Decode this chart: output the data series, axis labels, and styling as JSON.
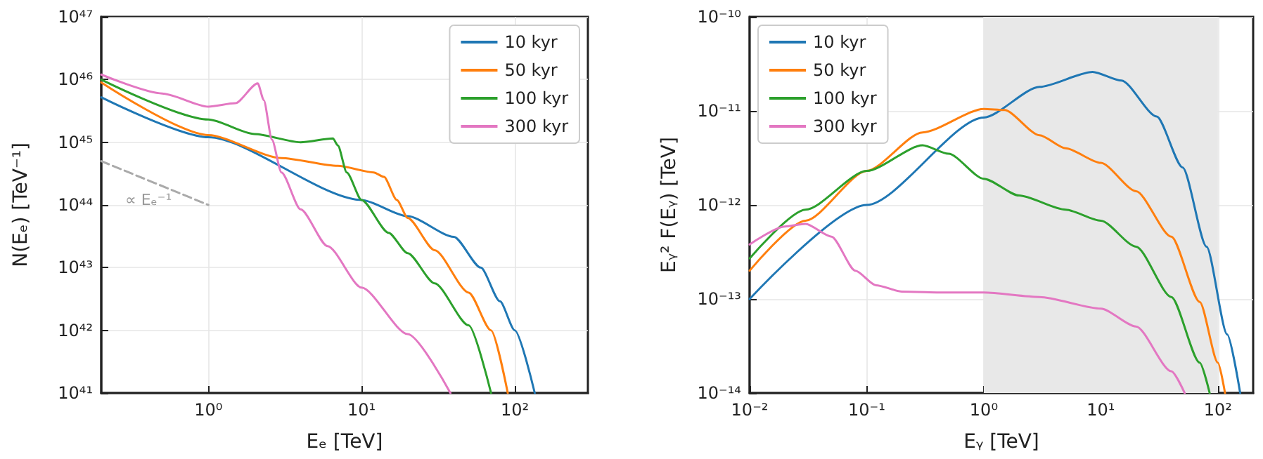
{
  "chart_data": [
    {
      "type": "line",
      "xlabel": "Eₑ [TeV]",
      "ylabel": "N(Eₑ) [TeV⁻¹]",
      "log": "xy",
      "grid": true,
      "legend": "top right",
      "xlim": [
        0.2,
        300
      ],
      "ylim": [
        1e+41,
        1e+47
      ],
      "xticks": [
        {
          "value": 1,
          "label": "10⁰"
        },
        {
          "value": 10,
          "label": "10¹"
        },
        {
          "value": 100,
          "label": "10²"
        }
      ],
      "yticks": [
        {
          "value": 1e+41,
          "label": "10⁴¹"
        },
        {
          "value": 1e+42,
          "label": "10⁴²"
        },
        {
          "value": 1e+43,
          "label": "10⁴³"
        },
        {
          "value": 1e+44,
          "label": "10⁴⁴"
        },
        {
          "value": 1e+45,
          "label": "10⁴⁵"
        },
        {
          "value": 1e+46,
          "label": "10⁴⁶"
        },
        {
          "value": 1e+47,
          "label": "10⁴⁷"
        }
      ],
      "annotations": [
        "∝ Eₑ⁻¹"
      ],
      "series": [
        {
          "name": "10 kyr",
          "color": "#1f77b4",
          "x": [
            0.2,
            1,
            10,
            20,
            40,
            60,
            80,
            100,
            135
          ],
          "values": [
            5.2e+45,
            1.2e+45,
            1.2e+44,
            6.6e+43,
            3.1e+43,
            1e+43,
            2.9e+42,
            1e+42,
            1e+41
          ]
        },
        {
          "name": "50 kyr",
          "color": "#ff7f0e",
          "x": [
            0.2,
            1,
            3,
            7,
            12,
            14,
            17,
            20,
            30,
            50,
            70,
            90
          ],
          "values": [
            9e+45,
            1.3e+45,
            5.6e+44,
            4.2e+44,
            3.3e+44,
            2.8e+44,
            1.2e+44,
            6.2e+43,
            1.9e+43,
            4e+42,
            1e+42,
            1e+41
          ]
        },
        {
          "name": "100 kyr",
          "color": "#2ca02c",
          "x": [
            0.2,
            1,
            2,
            4,
            6.5,
            7,
            8,
            10,
            15,
            20,
            30,
            50,
            70
          ],
          "values": [
            1e+46,
            2.3e+45,
            1.35e+45,
            1e+45,
            1.15e+45,
            8.9e+44,
            3.3e+44,
            1.2e+44,
            3.6e+43,
            1.7e+43,
            5.6e+42,
            1.2e+42,
            1e+41
          ]
        },
        {
          "name": "300 kyr",
          "color": "#e377c2",
          "x": [
            0.2,
            0.5,
            1,
            1.5,
            2.1,
            2.3,
            2.6,
            3,
            4,
            6,
            10,
            20,
            38
          ],
          "values": [
            1.2e+46,
            6e+45,
            3.7e+45,
            4.2e+45,
            8.7e+45,
            4.7e+45,
            1.1e+45,
            3.3e+44,
            8.5e+43,
            2.2e+43,
            4.8e+42,
            8.7e+41,
            1e+41
          ]
        },
        {
          "type": "line",
          "color": "#aaaaaa",
          "line_style": "dashed",
          "x": [
            0.2,
            1
          ],
          "values": [
            5e+44,
            1e+44
          ]
        }
      ]
    },
    {
      "type": "line",
      "xlabel": "Eᵧ [TeV]",
      "ylabel": "Eᵧ² F(Eᵧ) [TeV]",
      "log": "xy",
      "grid": true,
      "legend": "top left",
      "xlim": [
        0.01,
        200
      ],
      "ylim": [
        1e-14,
        1e-10
      ],
      "xticks": [
        {
          "value": 0.01,
          "label": "10⁻²"
        },
        {
          "value": 0.1,
          "label": "10⁻¹"
        },
        {
          "value": 1,
          "label": "10⁰"
        },
        {
          "value": 10,
          "label": "10¹"
        },
        {
          "value": 100,
          "label": "10²"
        }
      ],
      "yticks": [
        {
          "value": 1e-14,
          "label": "10⁻¹⁴"
        },
        {
          "value": 1e-13,
          "label": "10⁻¹³"
        },
        {
          "value": 1e-12,
          "label": "10⁻¹²"
        },
        {
          "value": 1e-11,
          "label": "10⁻¹¹"
        },
        {
          "value": 1e-10,
          "label": "10⁻¹⁰"
        }
      ],
      "bands": [
        {
          "axis": "x",
          "from": 1,
          "to": 100,
          "color": "#e8e8e8"
        }
      ],
      "series": [
        {
          "name": "10 kyr",
          "color": "#1f77b4",
          "x": [
            0.01,
            0.1,
            1,
            3,
            8.5,
            15,
            30,
            50,
            80,
            120,
            155
          ],
          "values": [
            1e-13,
            1e-12,
            8.5e-12,
            1.8e-11,
            2.6e-11,
            2.1e-11,
            8.7e-12,
            2.5e-12,
            3.6e-13,
            4.2e-14,
            1e-14
          ]
        },
        {
          "name": "50 kyr",
          "color": "#ff7f0e",
          "x": [
            0.01,
            0.03,
            0.1,
            0.3,
            1,
            1.5,
            3,
            5,
            10,
            20,
            40,
            70,
            100,
            115
          ],
          "values": [
            2e-13,
            6.8e-13,
            2.3e-12,
            5.9e-12,
            1.05e-11,
            1.02e-11,
            5.5e-12,
            4e-12,
            2.8e-12,
            1.4e-12,
            4.6e-13,
            9.3e-14,
            2.1e-14,
            1e-14
          ]
        },
        {
          "name": "100 kyr",
          "color": "#2ca02c",
          "x": [
            0.01,
            0.03,
            0.1,
            0.3,
            0.5,
            1,
            2,
            5,
            10,
            20,
            40,
            70,
            85
          ],
          "values": [
            2.7e-13,
            8.9e-13,
            2.3e-12,
            4.3e-12,
            3.5e-12,
            1.9e-12,
            1.26e-12,
            8.9e-13,
            6.8e-13,
            3.6e-13,
            1.05e-13,
            2.1e-14,
            1e-14
          ]
        },
        {
          "name": "300 kyr",
          "color": "#e377c2",
          "x": [
            0.01,
            0.02,
            0.03,
            0.05,
            0.08,
            0.12,
            0.2,
            0.5,
            1,
            3,
            10,
            20,
            40,
            52
          ],
          "values": [
            3.8e-13,
            5.9e-13,
            6.3e-13,
            4.6e-13,
            2e-13,
            1.4e-13,
            1.2e-13,
            1.17e-13,
            1.17e-13,
            1.05e-13,
            7.9e-14,
            5.1e-14,
            1.7e-14,
            1e-14
          ]
        }
      ]
    }
  ]
}
